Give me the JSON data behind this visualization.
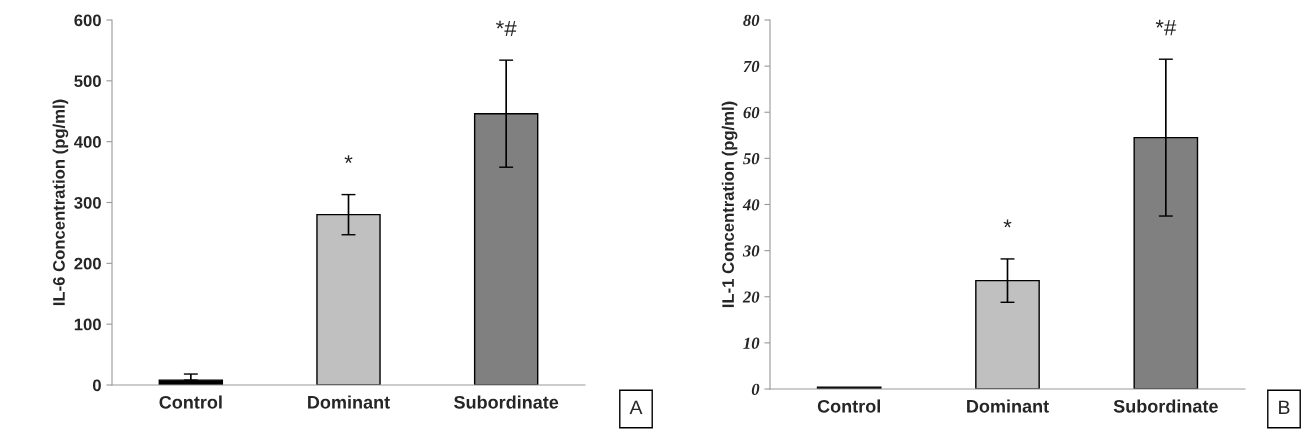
{
  "chart_data": [
    {
      "type": "bar",
      "ylabel": "IL-6 Concentration (pg/ml)",
      "categories": [
        "Control",
        "Dominant",
        "Subordinate"
      ],
      "values": [
        8,
        280,
        446
      ],
      "errors": [
        [
          8,
          18
        ],
        33,
        88
      ],
      "colors": [
        "#000000",
        "#c0c0c0",
        "#808080"
      ],
      "ylim": [
        0,
        600
      ],
      "yticks": [
        0,
        100,
        200,
        300,
        400,
        500,
        600
      ],
      "grid": false,
      "legend": false,
      "annotations": [
        "*",
        "*#",
        "A"
      ]
    },
    {
      "type": "bar",
      "ylabel": "IL-1 Concentration (pg/ml)",
      "categories": [
        "Control",
        "Dominant",
        "Subordinate"
      ],
      "values": [
        0.4,
        23.5,
        54.5
      ],
      "errors": [
        null,
        4.7,
        17
      ],
      "colors": [
        "#000000",
        "#c0c0c0",
        "#808080"
      ],
      "ylim": [
        0,
        80
      ],
      "yticks": [
        0,
        10,
        20,
        30,
        40,
        50,
        60,
        70,
        80
      ],
      "grid": false,
      "legend": false,
      "annotations": [
        "*",
        "*#",
        "B"
      ]
    }
  ]
}
